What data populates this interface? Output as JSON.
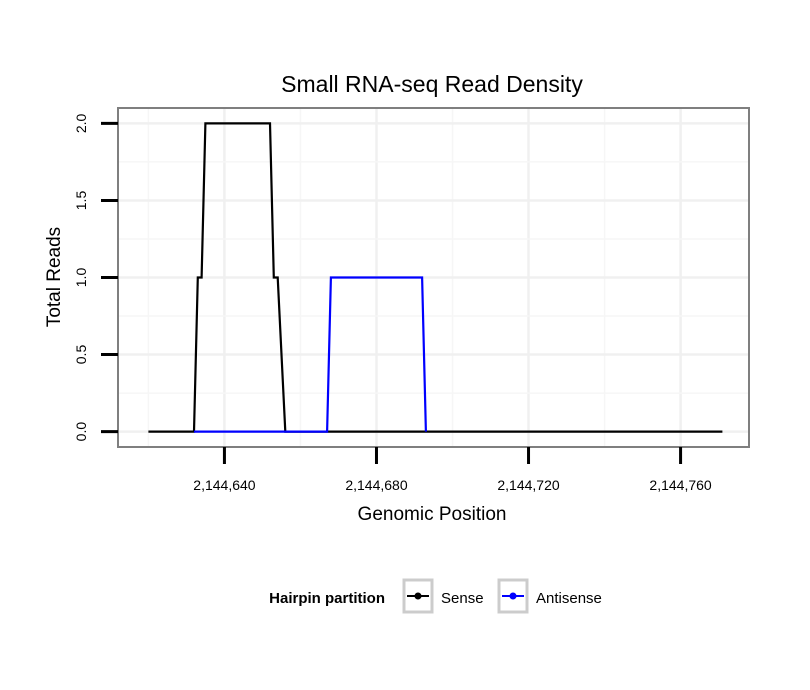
{
  "chart_data": {
    "type": "line",
    "title": "Small RNA-seq Read Density",
    "xlabel": "Genomic Position",
    "ylabel": "Total Reads",
    "xlim": [
      2144612,
      2144778
    ],
    "ylim": [
      -0.1,
      2.1
    ],
    "x_ticks": [
      2144640,
      2144680,
      2144720,
      2144760
    ],
    "x_tick_labels": [
      "2,144,640",
      "2,144,680",
      "2,144,720",
      "2,144,760"
    ],
    "y_ticks": [
      0,
      0.5,
      1,
      1.5,
      2
    ],
    "y_tick_labels": [
      "0.0",
      "0.5",
      "1.0",
      "1.5",
      "2.0"
    ],
    "grid": true,
    "legend": {
      "title": "Hairpin partition",
      "position": "bottom",
      "entries": [
        "Sense",
        "Antisense"
      ]
    },
    "series": [
      {
        "name": "Sense",
        "color": "#000000",
        "x": [
          2144620,
          2144632,
          2144633,
          2144634,
          2144635,
          2144652,
          2144653,
          2144654,
          2144656,
          2144657,
          2144771
        ],
        "y": [
          0,
          0,
          1,
          1,
          2,
          2,
          1,
          1,
          0,
          0,
          0
        ]
      },
      {
        "name": "Antisense",
        "color": "#0000ff",
        "x": [
          2144632,
          2144667,
          2144668,
          2144692,
          2144693
        ],
        "y": [
          0,
          0,
          1,
          1,
          0
        ]
      }
    ]
  }
}
